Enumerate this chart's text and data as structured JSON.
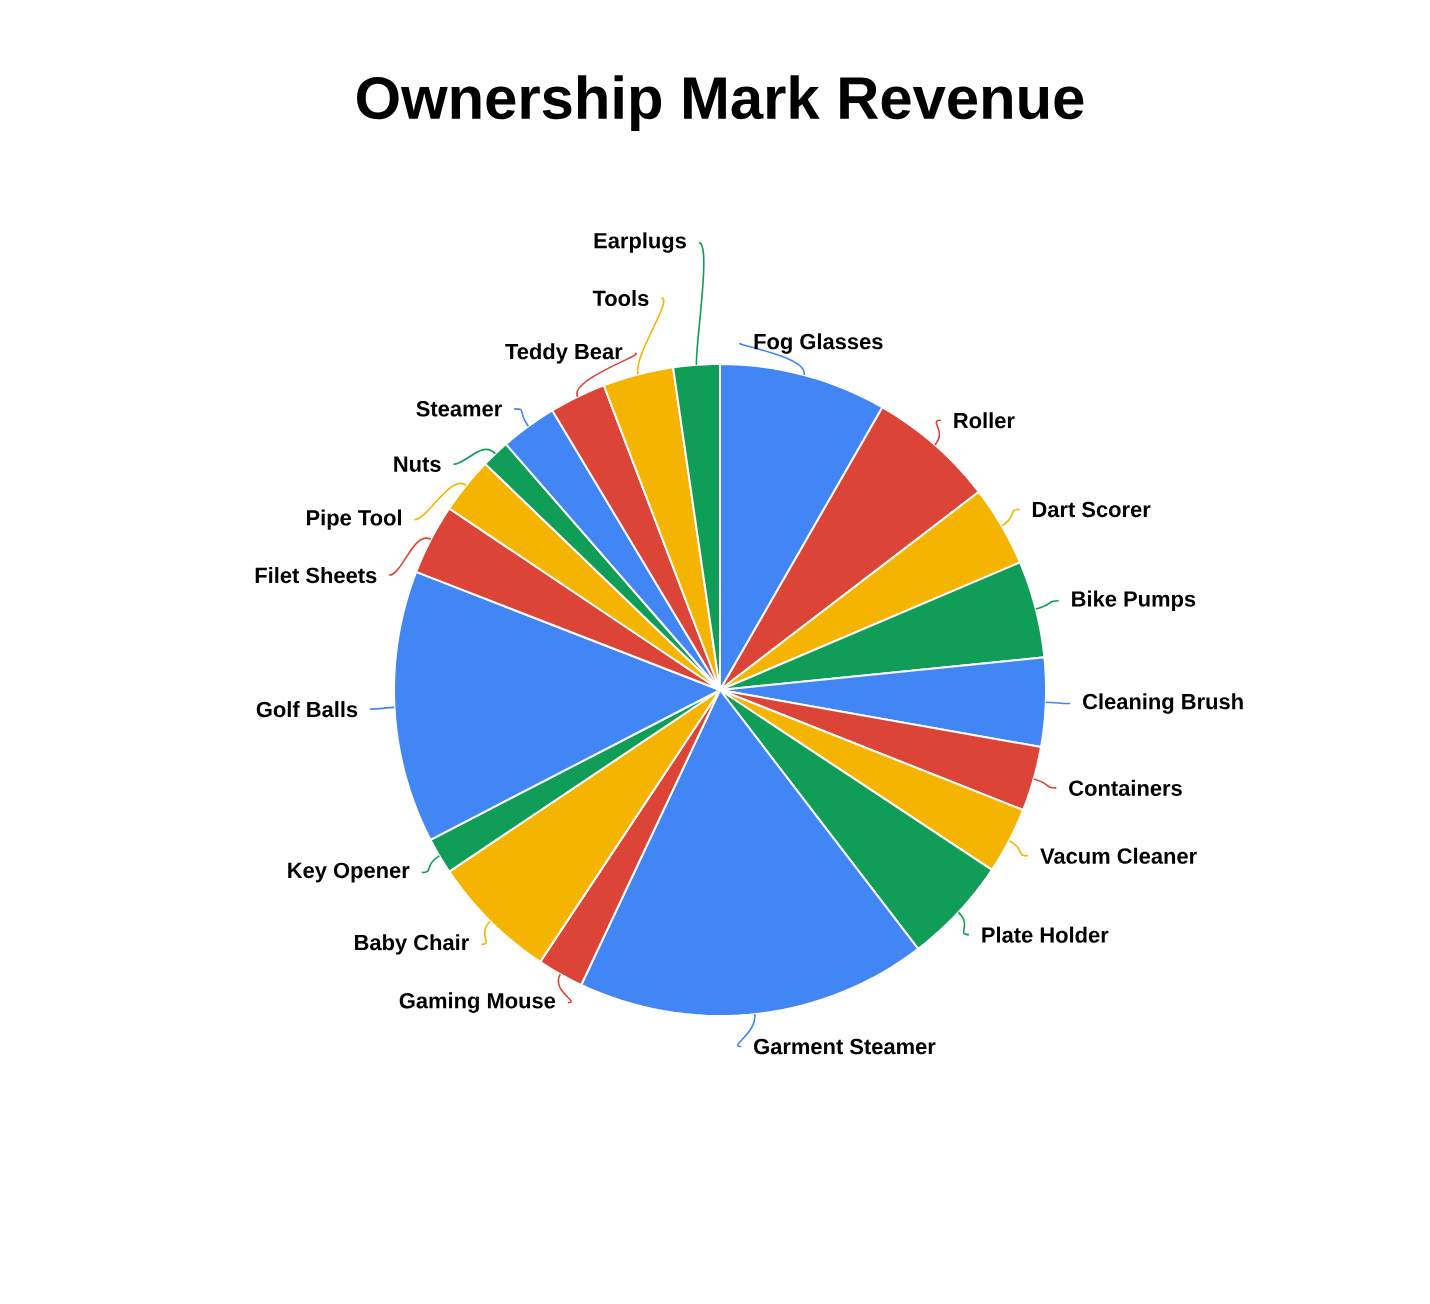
{
  "chart_data": {
    "type": "pie",
    "title": "Ownership Mark Revenue",
    "categories": [
      "Fog Glasses",
      "Roller",
      "Dart Scorer",
      "Bike Pumps",
      "Cleaning Brush",
      "Containers",
      "Vacum Cleaner",
      "Plate Holder",
      "Garment Steamer",
      "Gaming Mouse",
      "Baby Chair",
      "Key Opener",
      "Golf Balls",
      "Filet Sheets",
      "Pipe Tool",
      "Nuts",
      "Steamer",
      "Teddy Bear",
      "Tools",
      "Earplugs"
    ],
    "values": [
      8.3,
      6.3,
      4.0,
      4.8,
      4.4,
      3.2,
      3.3,
      5.3,
      17.4,
      2.3,
      6.3,
      1.8,
      13.5,
      3.5,
      2.8,
      1.4,
      2.8,
      2.8,
      3.5,
      2.3
    ],
    "colors": [
      "#4285f4",
      "#db4437",
      "#f4b400",
      "#0f9d58",
      "#4285f4",
      "#db4437",
      "#f4b400",
      "#0f9d58",
      "#4285f4",
      "#db4437",
      "#f4b400",
      "#0f9d58",
      "#4285f4",
      "#db4437",
      "#f4b400",
      "#0f9d58",
      "#4285f4",
      "#db4437",
      "#f4b400",
      "#0f9d58"
    ]
  }
}
